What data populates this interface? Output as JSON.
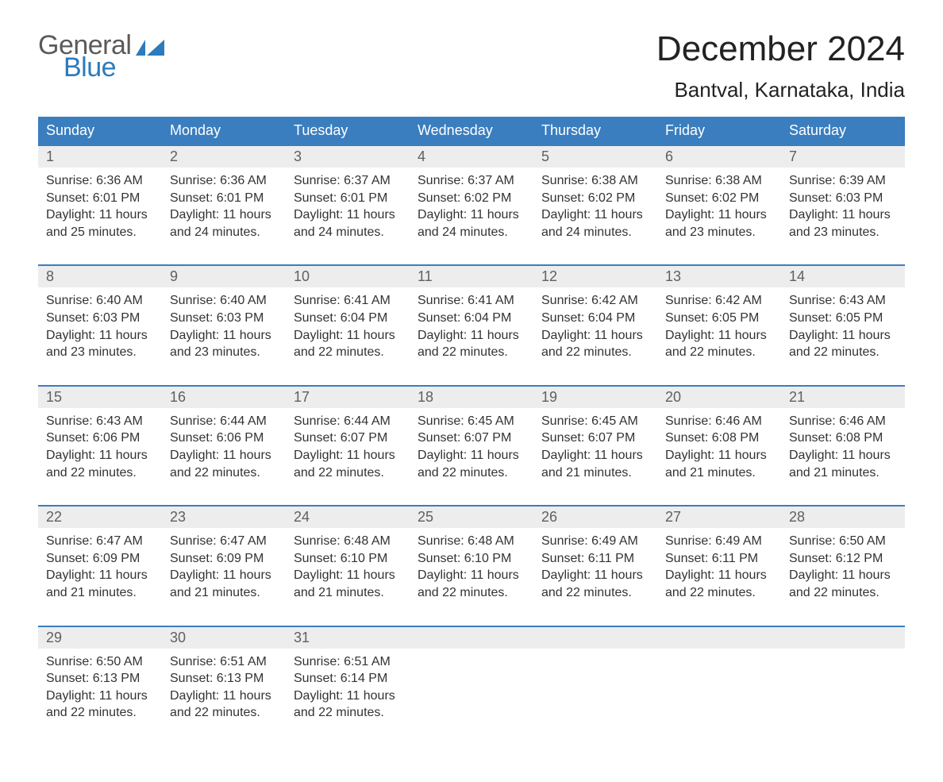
{
  "logo": {
    "line1": "General",
    "line2": "Blue",
    "accent": "#2b7bbd",
    "text": "#5a5a5a"
  },
  "header": {
    "title": "December 2024",
    "location": "Bantval, Karnataka, India"
  },
  "colors": {
    "header_bg": "#3a7ebf",
    "week_rule": "#3a7ebf",
    "daynum_bg": "#ededed",
    "daynum_fg": "#606060",
    "body_text": "#333"
  },
  "daynames": [
    "Sunday",
    "Monday",
    "Tuesday",
    "Wednesday",
    "Thursday",
    "Friday",
    "Saturday"
  ],
  "weeks": [
    [
      {
        "n": "1",
        "sr": "Sunrise: 6:36 AM",
        "ss": "Sunset: 6:01 PM",
        "dl1": "Daylight: 11 hours",
        "dl2": "and 25 minutes."
      },
      {
        "n": "2",
        "sr": "Sunrise: 6:36 AM",
        "ss": "Sunset: 6:01 PM",
        "dl1": "Daylight: 11 hours",
        "dl2": "and 24 minutes."
      },
      {
        "n": "3",
        "sr": "Sunrise: 6:37 AM",
        "ss": "Sunset: 6:01 PM",
        "dl1": "Daylight: 11 hours",
        "dl2": "and 24 minutes."
      },
      {
        "n": "4",
        "sr": "Sunrise: 6:37 AM",
        "ss": "Sunset: 6:02 PM",
        "dl1": "Daylight: 11 hours",
        "dl2": "and 24 minutes."
      },
      {
        "n": "5",
        "sr": "Sunrise: 6:38 AM",
        "ss": "Sunset: 6:02 PM",
        "dl1": "Daylight: 11 hours",
        "dl2": "and 24 minutes."
      },
      {
        "n": "6",
        "sr": "Sunrise: 6:38 AM",
        "ss": "Sunset: 6:02 PM",
        "dl1": "Daylight: 11 hours",
        "dl2": "and 23 minutes."
      },
      {
        "n": "7",
        "sr": "Sunrise: 6:39 AM",
        "ss": "Sunset: 6:03 PM",
        "dl1": "Daylight: 11 hours",
        "dl2": "and 23 minutes."
      }
    ],
    [
      {
        "n": "8",
        "sr": "Sunrise: 6:40 AM",
        "ss": "Sunset: 6:03 PM",
        "dl1": "Daylight: 11 hours",
        "dl2": "and 23 minutes."
      },
      {
        "n": "9",
        "sr": "Sunrise: 6:40 AM",
        "ss": "Sunset: 6:03 PM",
        "dl1": "Daylight: 11 hours",
        "dl2": "and 23 minutes."
      },
      {
        "n": "10",
        "sr": "Sunrise: 6:41 AM",
        "ss": "Sunset: 6:04 PM",
        "dl1": "Daylight: 11 hours",
        "dl2": "and 22 minutes."
      },
      {
        "n": "11",
        "sr": "Sunrise: 6:41 AM",
        "ss": "Sunset: 6:04 PM",
        "dl1": "Daylight: 11 hours",
        "dl2": "and 22 minutes."
      },
      {
        "n": "12",
        "sr": "Sunrise: 6:42 AM",
        "ss": "Sunset: 6:04 PM",
        "dl1": "Daylight: 11 hours",
        "dl2": "and 22 minutes."
      },
      {
        "n": "13",
        "sr": "Sunrise: 6:42 AM",
        "ss": "Sunset: 6:05 PM",
        "dl1": "Daylight: 11 hours",
        "dl2": "and 22 minutes."
      },
      {
        "n": "14",
        "sr": "Sunrise: 6:43 AM",
        "ss": "Sunset: 6:05 PM",
        "dl1": "Daylight: 11 hours",
        "dl2": "and 22 minutes."
      }
    ],
    [
      {
        "n": "15",
        "sr": "Sunrise: 6:43 AM",
        "ss": "Sunset: 6:06 PM",
        "dl1": "Daylight: 11 hours",
        "dl2": "and 22 minutes."
      },
      {
        "n": "16",
        "sr": "Sunrise: 6:44 AM",
        "ss": "Sunset: 6:06 PM",
        "dl1": "Daylight: 11 hours",
        "dl2": "and 22 minutes."
      },
      {
        "n": "17",
        "sr": "Sunrise: 6:44 AM",
        "ss": "Sunset: 6:07 PM",
        "dl1": "Daylight: 11 hours",
        "dl2": "and 22 minutes."
      },
      {
        "n": "18",
        "sr": "Sunrise: 6:45 AM",
        "ss": "Sunset: 6:07 PM",
        "dl1": "Daylight: 11 hours",
        "dl2": "and 22 minutes."
      },
      {
        "n": "19",
        "sr": "Sunrise: 6:45 AM",
        "ss": "Sunset: 6:07 PM",
        "dl1": "Daylight: 11 hours",
        "dl2": "and 21 minutes."
      },
      {
        "n": "20",
        "sr": "Sunrise: 6:46 AM",
        "ss": "Sunset: 6:08 PM",
        "dl1": "Daylight: 11 hours",
        "dl2": "and 21 minutes."
      },
      {
        "n": "21",
        "sr": "Sunrise: 6:46 AM",
        "ss": "Sunset: 6:08 PM",
        "dl1": "Daylight: 11 hours",
        "dl2": "and 21 minutes."
      }
    ],
    [
      {
        "n": "22",
        "sr": "Sunrise: 6:47 AM",
        "ss": "Sunset: 6:09 PM",
        "dl1": "Daylight: 11 hours",
        "dl2": "and 21 minutes."
      },
      {
        "n": "23",
        "sr": "Sunrise: 6:47 AM",
        "ss": "Sunset: 6:09 PM",
        "dl1": "Daylight: 11 hours",
        "dl2": "and 21 minutes."
      },
      {
        "n": "24",
        "sr": "Sunrise: 6:48 AM",
        "ss": "Sunset: 6:10 PM",
        "dl1": "Daylight: 11 hours",
        "dl2": "and 21 minutes."
      },
      {
        "n": "25",
        "sr": "Sunrise: 6:48 AM",
        "ss": "Sunset: 6:10 PM",
        "dl1": "Daylight: 11 hours",
        "dl2": "and 22 minutes."
      },
      {
        "n": "26",
        "sr": "Sunrise: 6:49 AM",
        "ss": "Sunset: 6:11 PM",
        "dl1": "Daylight: 11 hours",
        "dl2": "and 22 minutes."
      },
      {
        "n": "27",
        "sr": "Sunrise: 6:49 AM",
        "ss": "Sunset: 6:11 PM",
        "dl1": "Daylight: 11 hours",
        "dl2": "and 22 minutes."
      },
      {
        "n": "28",
        "sr": "Sunrise: 6:50 AM",
        "ss": "Sunset: 6:12 PM",
        "dl1": "Daylight: 11 hours",
        "dl2": "and 22 minutes."
      }
    ],
    [
      {
        "n": "29",
        "sr": "Sunrise: 6:50 AM",
        "ss": "Sunset: 6:13 PM",
        "dl1": "Daylight: 11 hours",
        "dl2": "and 22 minutes."
      },
      {
        "n": "30",
        "sr": "Sunrise: 6:51 AM",
        "ss": "Sunset: 6:13 PM",
        "dl1": "Daylight: 11 hours",
        "dl2": "and 22 minutes."
      },
      {
        "n": "31",
        "sr": "Sunrise: 6:51 AM",
        "ss": "Sunset: 6:14 PM",
        "dl1": "Daylight: 11 hours",
        "dl2": "and 22 minutes."
      },
      {
        "empty": true
      },
      {
        "empty": true
      },
      {
        "empty": true
      },
      {
        "empty": true
      }
    ]
  ]
}
